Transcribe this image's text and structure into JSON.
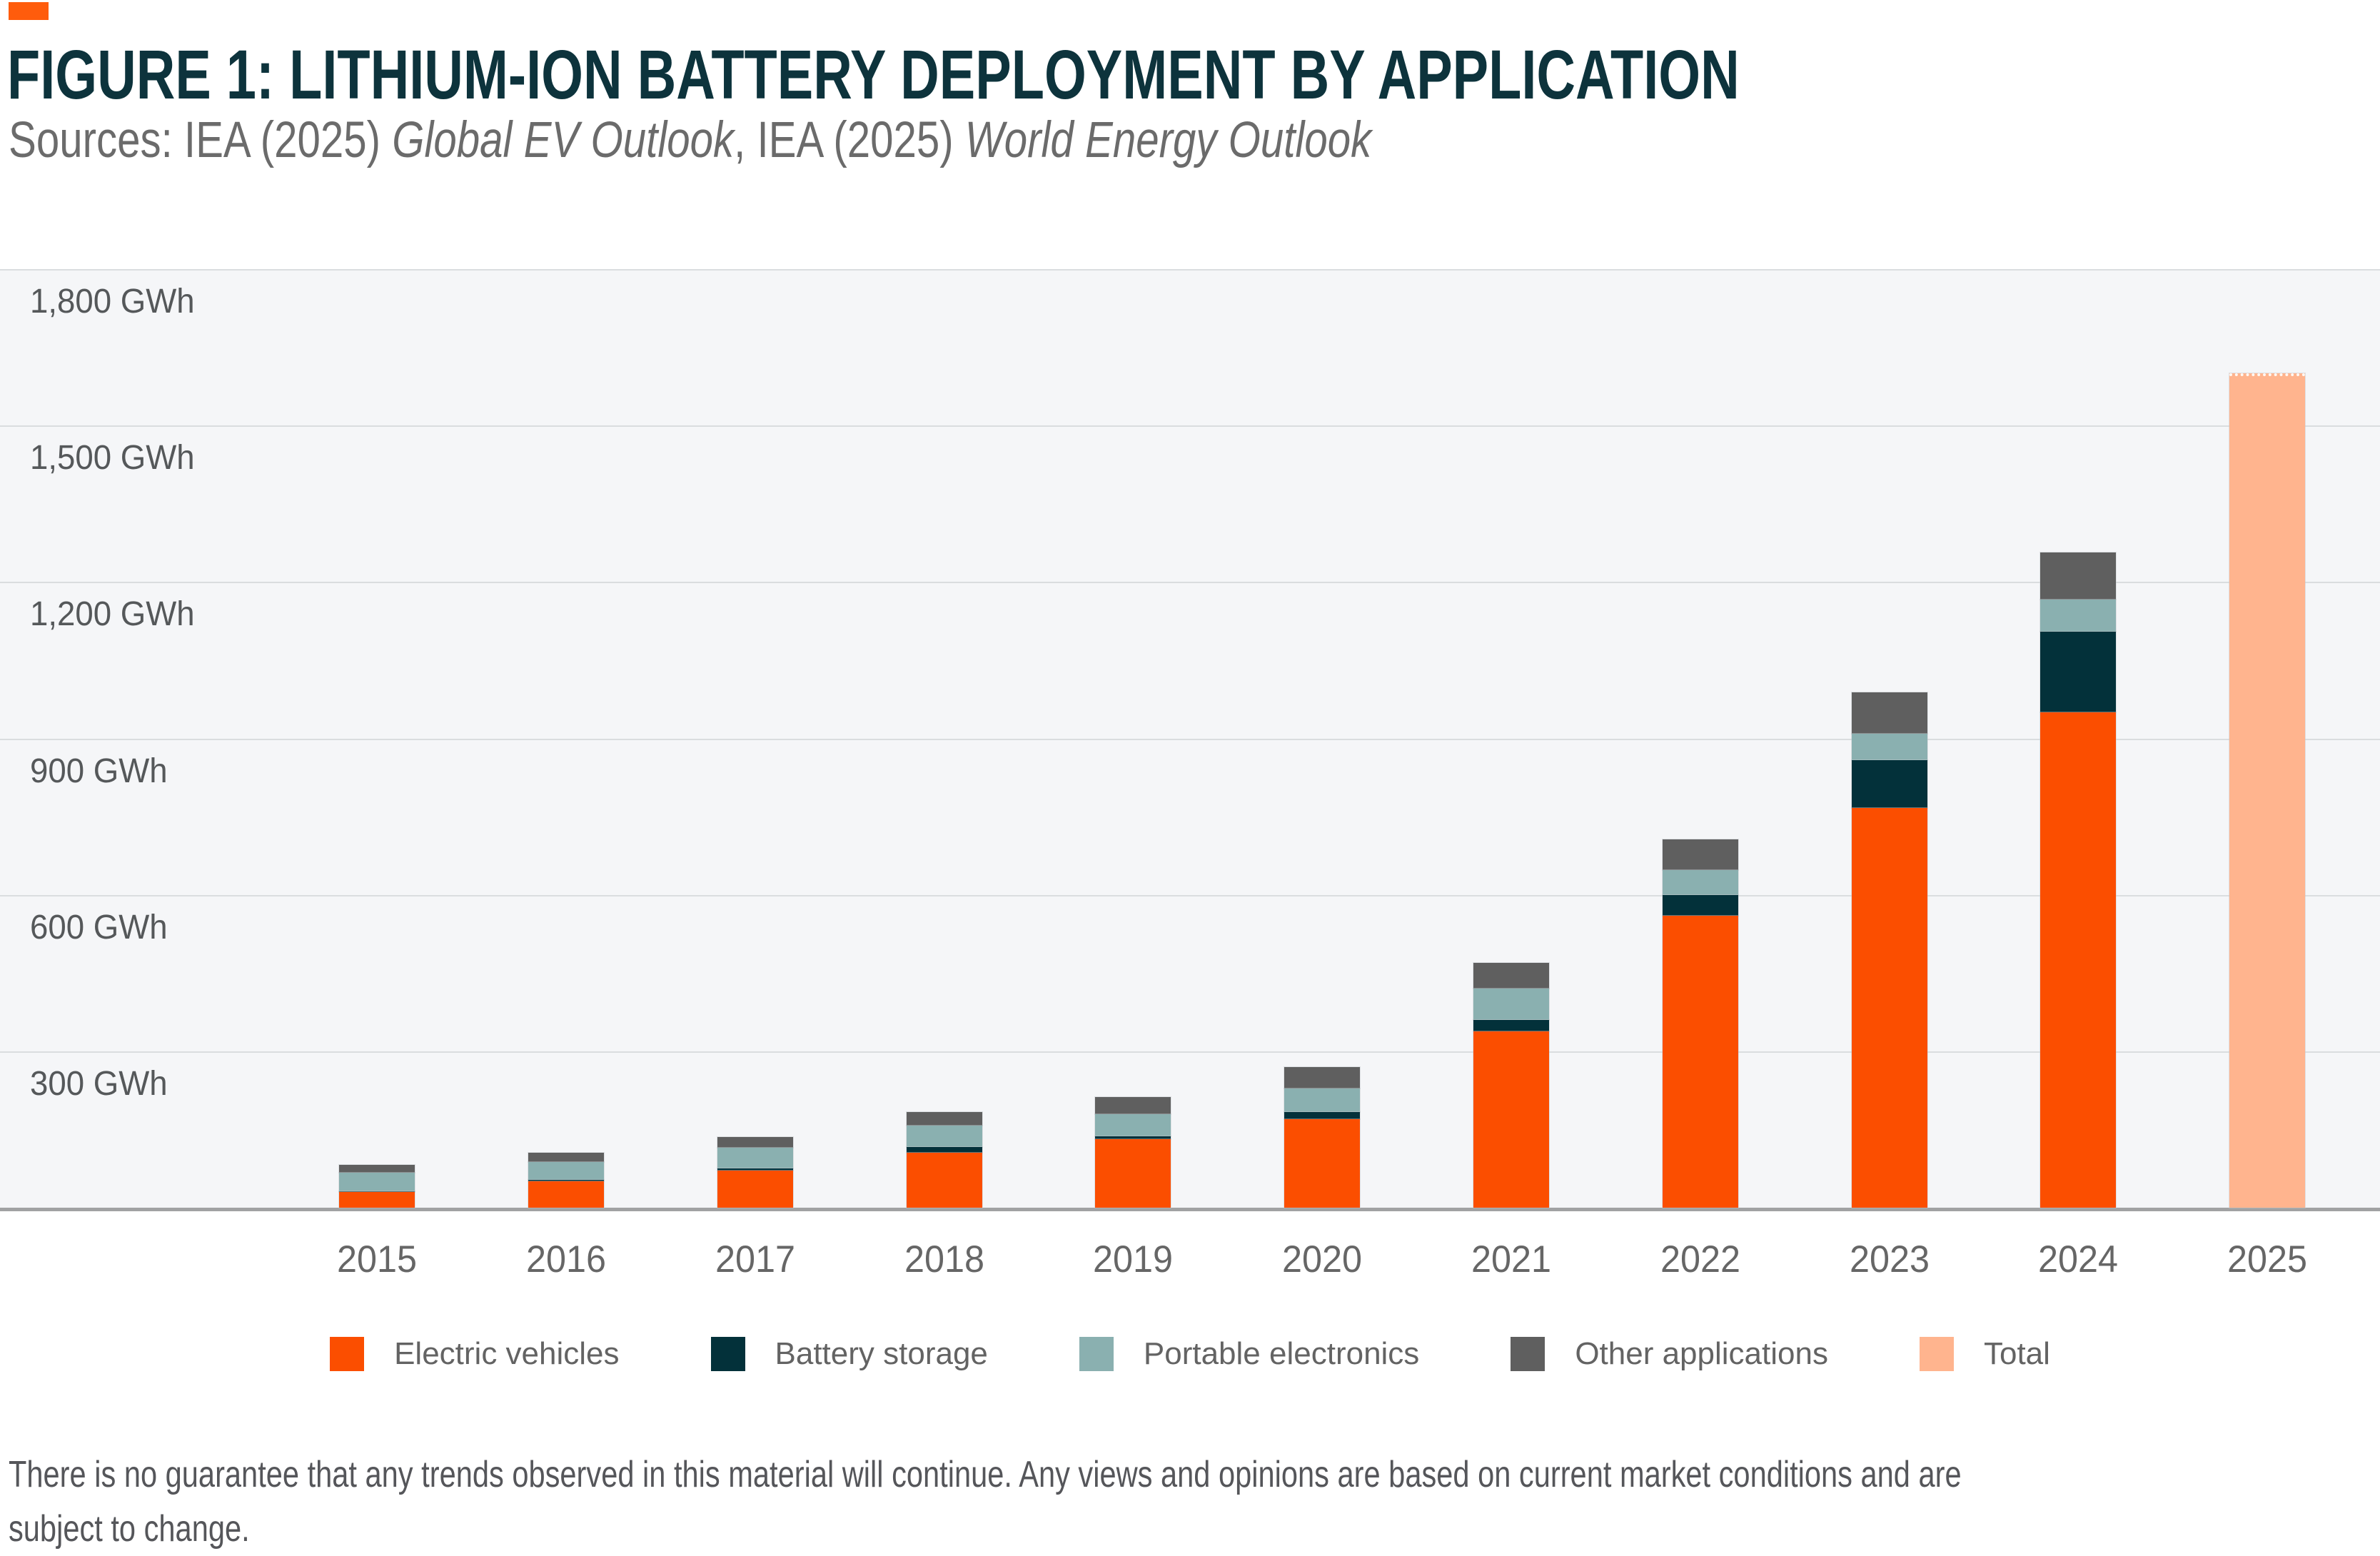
{
  "header": {
    "brand_color": "#ff5c0c",
    "title": "FIGURE 1: LITHIUM-ION BATTERY DEPLOYMENT BY APPLICATION",
    "title_color": "#0d333c",
    "sources": {
      "prefix": "Sources: IEA (2025) ",
      "italic_1": "Global EV Outlook",
      "middle": ", IEA (2025) ",
      "italic_2": "World Energy Outlook"
    }
  },
  "chart_data": {
    "type": "bar",
    "stacked": true,
    "unit": "GWh",
    "title": "Lithium-ion battery deployment by application",
    "ylim": [
      0,
      1800
    ],
    "grid": true,
    "legend_position": "bottom",
    "plot_background": "#f5f6f8",
    "gridline_color": "#dadddf",
    "axis_line_color": "#a1a2a3",
    "y_ticks": [
      {
        "value": 1800,
        "label": "1,800 GWh"
      },
      {
        "value": 1500,
        "label": "1,500 GWh"
      },
      {
        "value": 1200,
        "label": "1,200 GWh"
      },
      {
        "value": 900,
        "label": "900 GWh"
      },
      {
        "value": 600,
        "label": "600 GWh"
      },
      {
        "value": 300,
        "label": "300 GWh"
      }
    ],
    "categories": [
      "2015",
      "2016",
      "2017",
      "2018",
      "2019",
      "2020",
      "2021",
      "2022",
      "2023",
      "2024",
      "2025"
    ],
    "series": [
      {
        "name": "Electric vehicles",
        "color": "#fb4e00",
        "role": "stack",
        "values": [
          30,
          50,
          71,
          106,
          131,
          170,
          338,
          560,
          767,
          950,
          null
        ]
      },
      {
        "name": "Battery storage",
        "color": "#03313a",
        "role": "stack",
        "values": [
          1,
          4,
          5,
          11,
          6,
          14,
          22,
          39,
          91,
          155,
          null
        ]
      },
      {
        "name": "Portable electronics",
        "color": "#8ab0b0",
        "role": "stack",
        "values": [
          36,
          33,
          39,
          40,
          43,
          45,
          60,
          49,
          51,
          61,
          null
        ]
      },
      {
        "name": "Other applications",
        "color": "#5f5f5f",
        "role": "stack",
        "values": [
          15,
          18,
          20,
          26,
          32,
          41,
          50,
          59,
          80,
          90,
          null
        ]
      },
      {
        "name": "Total",
        "color": "#ffb48e",
        "role": "total",
        "values": [
          null,
          null,
          null,
          null,
          null,
          null,
          null,
          null,
          null,
          null,
          1595
        ]
      }
    ],
    "stacked_totals": [
      82,
      105,
      135,
      183,
      212,
      270,
      470,
      707,
      989,
      1256,
      1595
    ]
  },
  "footer": {
    "disclaimer_line_1": "There is no guarantee that any trends observed in this material will continue. Any views and opinions are based on current market conditions and are",
    "disclaimer_line_2": "subject to change."
  }
}
